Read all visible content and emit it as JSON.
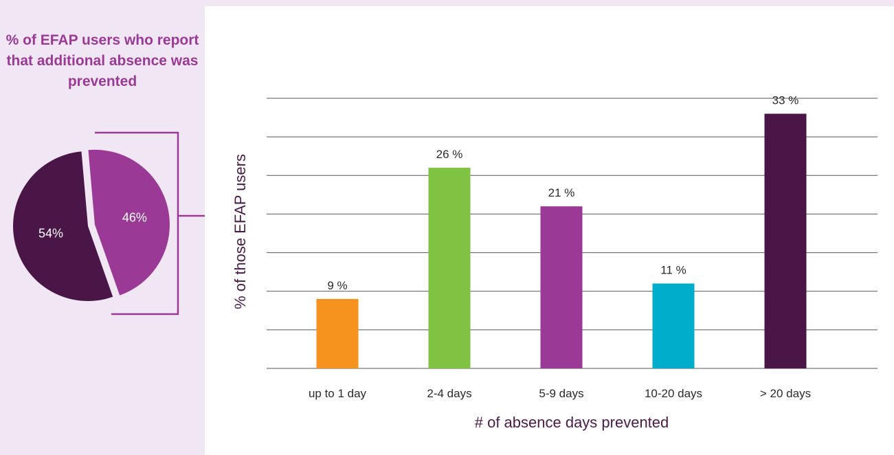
{
  "pie": {
    "title": "% of EFAP users who report that additional absence was prevented",
    "colors": {
      "no": "#4a1648",
      "yes": "#9b3a96",
      "bracket": "#9b3a96"
    }
  },
  "chart_data": [
    {
      "type": "pie",
      "title": "% of EFAP users who report that additional absence was prevented",
      "slices": [
        {
          "value": 54,
          "label": "54%",
          "color": "#4a1648"
        },
        {
          "value": 46,
          "label": "46%",
          "color": "#9b3a96"
        }
      ]
    },
    {
      "type": "bar",
      "categories": [
        "up to 1 day",
        "2-4 days",
        "5-9 days",
        "10-20 days",
        "> 20 days"
      ],
      "values": [
        9,
        26,
        21,
        11,
        33
      ],
      "value_labels": [
        "9 %",
        "26 %",
        "21 %",
        "11 %",
        "33 %"
      ],
      "colors": [
        "#f6921e",
        "#80c242",
        "#9b3a96",
        "#00aecc",
        "#4a1648"
      ],
      "xlabel": "# of absence days prevented",
      "ylabel": "% of those EFAP users",
      "ylim": [
        0,
        35
      ],
      "grid": true,
      "grid_color": "#555555"
    }
  ]
}
